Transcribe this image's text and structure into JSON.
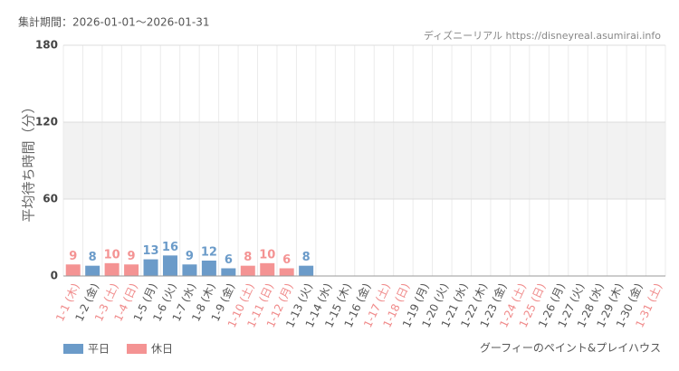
{
  "period": "集計期間：2026-01-01〜2026-01-31",
  "source": "ディズニーリアル https://disneyreal.asumirai.info",
  "attraction": "グーフィーのペイント&プレイハウス",
  "chart_data": {
    "type": "bar",
    "y_label": "平均待ち時間（分）",
    "categories": [
      "1-1 (木)",
      "1-2 (金)",
      "1-3 (土)",
      "1-4 (日)",
      "1-5 (月)",
      "1-6 (火)",
      "1-7 (水)",
      "1-8 (木)",
      "1-9 (金)",
      "1-10 (土)",
      "1-11 (日)",
      "1-12 (月)",
      "1-13 (火)",
      "1-14 (水)",
      "1-15 (木)",
      "1-16 (金)",
      "1-17 (土)",
      "1-18 (日)",
      "1-19 (月)",
      "1-20 (火)",
      "1-21 (水)",
      "1-22 (木)",
      "1-23 (金)",
      "1-24 (土)",
      "1-25 (日)",
      "1-26 (月)",
      "1-27 (火)",
      "1-28 (水)",
      "1-29 (木)",
      "1-30 (金)",
      "1-31 (土)"
    ],
    "category_label_colors": [
      "#f08a8a",
      "#555555",
      "#f08a8a",
      "#f08a8a",
      "#555555",
      "#555555",
      "#555555",
      "#555555",
      "#555555",
      "#f08a8a",
      "#f08a8a",
      "#f08a8a",
      "#555555",
      "#555555",
      "#555555",
      "#555555",
      "#f08a8a",
      "#f08a8a",
      "#555555",
      "#555555",
      "#555555",
      "#555555",
      "#555555",
      "#f08a8a",
      "#f08a8a",
      "#555555",
      "#555555",
      "#555555",
      "#555555",
      "#555555",
      "#f08a8a"
    ],
    "series": [
      {
        "name": "平日",
        "color": "#6b9bc9",
        "values": [
          null,
          8,
          null,
          null,
          13,
          16,
          9,
          12,
          6,
          null,
          null,
          null,
          8,
          null,
          null,
          null,
          null,
          null,
          null,
          null,
          null,
          null,
          null,
          null,
          null,
          null,
          null,
          null,
          null,
          null,
          null
        ]
      },
      {
        "name": "休日",
        "color": "#f49393",
        "values": [
          9,
          null,
          10,
          9,
          null,
          null,
          null,
          null,
          null,
          8,
          10,
          6,
          null,
          null,
          null,
          null,
          null,
          null,
          null,
          null,
          null,
          null,
          null,
          null,
          null,
          null,
          null,
          null,
          null,
          null,
          null
        ]
      }
    ],
    "ylim": [
      0,
      180
    ],
    "yticks": [
      0,
      60,
      120,
      180
    ],
    "grid": true
  }
}
